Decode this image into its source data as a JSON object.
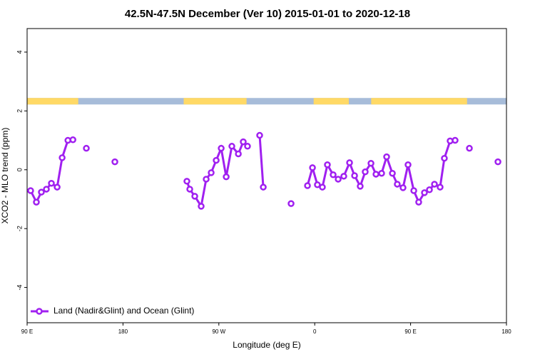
{
  "chart_data": {
    "type": "line",
    "title": "42.5N-47.5N December (Ver 10)   2015-01-01 to 2020-12-18",
    "x_label": "Longitude (deg E)",
    "y_label": "XCO2 - MLO trend (ppm)",
    "xlim": [
      90,
      540
    ],
    "ylim": [
      -5.2,
      4.8
    ],
    "xticks": [
      {
        "value": 90,
        "label": "90 E"
      },
      180,
      {
        "value": 270,
        "label": "90 W"
      },
      {
        "value": 360,
        "label": "0"
      },
      {
        "value": 450,
        "label": "90 E"
      },
      {
        "value": 540,
        "label": "180"
      }
    ],
    "yticks": [
      -4,
      -2,
      0,
      2,
      4
    ],
    "legend": "bottom-left",
    "surface_band": {
      "ylim": [
        2.22,
        2.44
      ],
      "land_color": "#ffd966",
      "ocean_color": "#a7bcd9",
      "land": [
        [
          90,
          138
        ],
        [
          237,
          296
        ],
        [
          359,
          392
        ],
        [
          413,
          503
        ]
      ]
    },
    "series": [
      {
        "name": "Land (Nadir&Glint) and Ocean (Glint)",
        "color": "#a020f0",
        "x": [
          93.3,
          98.7,
          103.4,
          108.1,
          112.8,
          118.2,
          122.9,
          128.3,
          133.0,
          null,
          145.6,
          null,
          172.4,
          null,
          240.0,
          242.7,
          247.4,
          253.4,
          258.1,
          262.8,
          267.5,
          272.2,
          276.9,
          282.2,
          288.3,
          292.9,
          296.9,
          null,
          308.3,
          311.7,
          null,
          337.8,
          null,
          353.2,
          357.9,
          362.5,
          367.2,
          371.9,
          377.3,
          382.0,
          387.3,
          392.7,
          397.4,
          402.7,
          407.4,
          412.8,
          417.5,
          422.8,
          427.5,
          432.9,
          437.5,
          442.9,
          447.6,
          453.0,
          457.6,
          463.0,
          467.7,
          472.4,
          477.7,
          481.7,
          487.1,
          491.8,
          null,
          505.2,
          null,
          532.0
        ],
        "values": [
          -0.71,
          -1.1,
          -0.76,
          -0.66,
          -0.46,
          -0.59,
          0.41,
          1.0,
          1.02,
          null,
          0.73,
          null,
          0.27,
          null,
          -0.39,
          -0.66,
          -0.9,
          -1.24,
          -0.32,
          -0.1,
          0.32,
          0.73,
          -0.24,
          0.8,
          0.54,
          0.95,
          0.8,
          null,
          1.17,
          -0.59,
          null,
          -1.15,
          null,
          -0.54,
          0.07,
          -0.51,
          -0.59,
          0.17,
          -0.17,
          -0.32,
          -0.22,
          0.24,
          -0.2,
          -0.56,
          -0.07,
          0.22,
          -0.15,
          -0.12,
          0.44,
          -0.12,
          -0.49,
          -0.61,
          0.17,
          -0.71,
          -1.1,
          -0.78,
          -0.68,
          -0.49,
          -0.59,
          0.39,
          0.98,
          1.0,
          null,
          0.73,
          null,
          0.27
        ]
      }
    ]
  }
}
